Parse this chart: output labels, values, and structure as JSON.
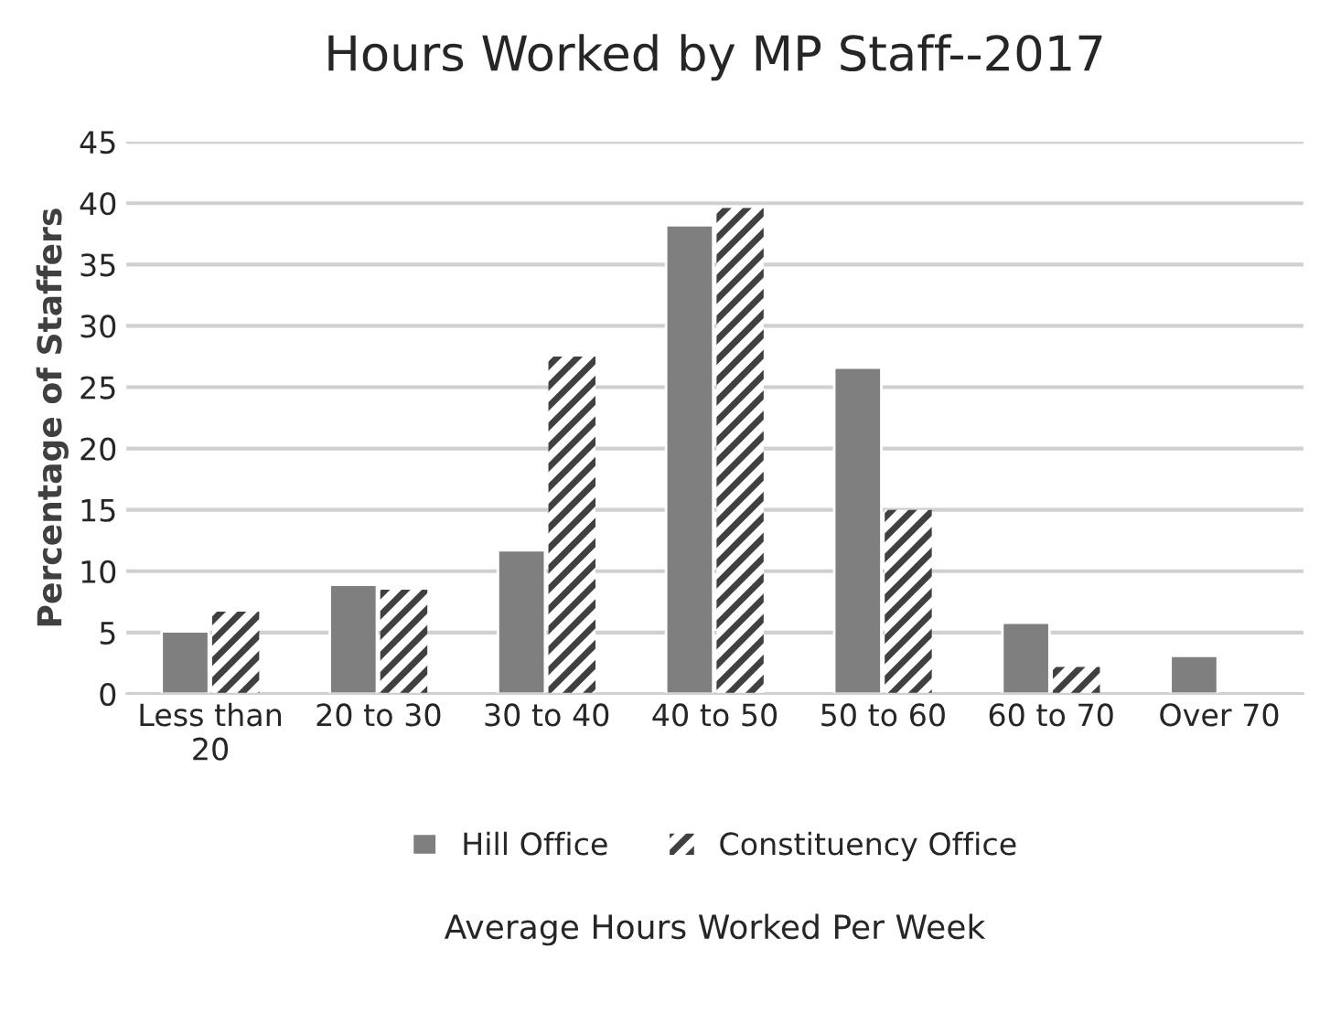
{
  "chart_data": {
    "type": "bar",
    "title": "Hours Worked by MP Staff--2017",
    "xlabel": "Average Hours Worked Per Week",
    "ylabel": "Percentage of Staffers",
    "categories": [
      "Less than\n20",
      "20 to 30",
      "30 to 40",
      "40 to 50",
      "50 to 60",
      "60 to 70",
      "Over 70"
    ],
    "series": [
      {
        "name": "Hill Office",
        "color": "#7f7f7f",
        "values": [
          5.1,
          8.9,
          11.7,
          38.2,
          26.6,
          5.8,
          3.1
        ]
      },
      {
        "name": "Constituency Office",
        "color": "#404040",
        "values": [
          6.7,
          8.5,
          27.5,
          39.6,
          15.0,
          2.2,
          0
        ]
      }
    ],
    "ylim": [
      0,
      45
    ],
    "yticks": [
      0,
      5,
      10,
      15,
      20,
      25,
      30,
      35,
      40,
      45
    ],
    "grid": "y",
    "legend": "bottom"
  }
}
